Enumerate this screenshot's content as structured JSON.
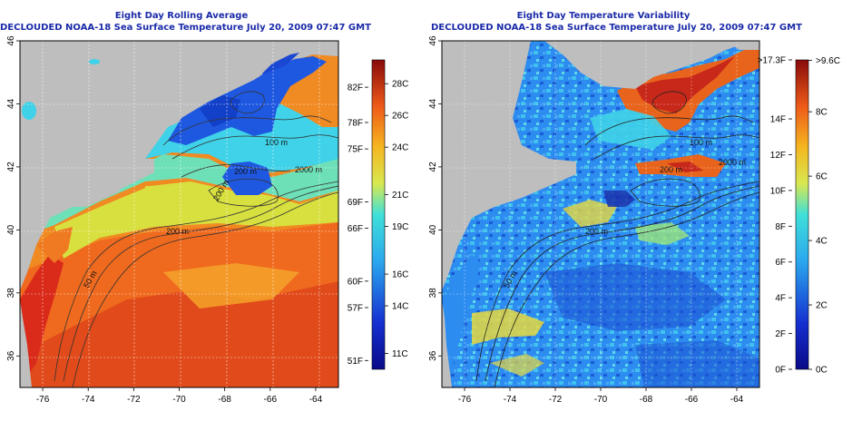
{
  "left_panel": {
    "title_line1": "Eight Day Rolling Average",
    "title_line2": "DECLOUDED NOAA-18 Sea Surface Temperature July 20, 2009 07:47 GMT",
    "x_ticks": [
      "-76",
      "-74",
      "-72",
      "-70",
      "-68",
      "-66",
      "-64"
    ],
    "y_ticks": [
      "36",
      "38",
      "40",
      "42",
      "44",
      "46"
    ],
    "contour_labels": [
      "50 m",
      "200 m",
      "200 m",
      "200 m",
      "2000 m",
      "100 m"
    ],
    "colorbar_f_labels": [
      "82F",
      "78F",
      "75F",
      "69F",
      "66F",
      "60F",
      "57F",
      "51F"
    ],
    "colorbar_c_labels": [
      "28C",
      "26C",
      "24C",
      "21C",
      "19C",
      "16C",
      "14C",
      "11C"
    ],
    "colorbar_f_values": [
      82,
      78,
      75,
      69,
      66,
      60,
      57,
      51
    ],
    "colorbar_c_values": [
      28,
      26,
      24,
      21,
      19,
      16,
      14,
      11
    ],
    "colorbar_range_c": [
      10,
      29.5
    ]
  },
  "right_panel": {
    "title_line1": "Eight Day Temperature Variability",
    "title_line2": "DECLOUDED NOAA-18 Sea Surface Temperature July 20, 2009 07:47 GMT",
    "x_ticks": [
      "-76",
      "-74",
      "-72",
      "-70",
      "-68",
      "-66",
      "-64"
    ],
    "y_ticks": [
      "36",
      "38",
      "40",
      "42",
      "44",
      "46"
    ],
    "contour_labels": [
      "50 m",
      "200 m",
      "2000 m",
      "100 m",
      "200 m"
    ],
    "colorbar_f_labels": [
      ">17.3F",
      "14F",
      "12F",
      "10F",
      "8F",
      "6F",
      "4F",
      "2F",
      "0F"
    ],
    "colorbar_c_labels": [
      ">9.6C",
      "8C",
      "6C",
      "4C",
      "2C",
      "0C"
    ],
    "colorbar_f_values": [
      17.3,
      14,
      12,
      10,
      8,
      6,
      4,
      2,
      0
    ],
    "colorbar_c_values": [
      9.6,
      8,
      6,
      4,
      2,
      0
    ],
    "colorbar_range_f": [
      0,
      17.3
    ]
  },
  "map_extent": {
    "lon": [
      -77,
      -63
    ],
    "lat": [
      35,
      46
    ]
  },
  "colors": {
    "land": "#bebebe",
    "title": "#1a2aa8",
    "contour": "#333333"
  }
}
